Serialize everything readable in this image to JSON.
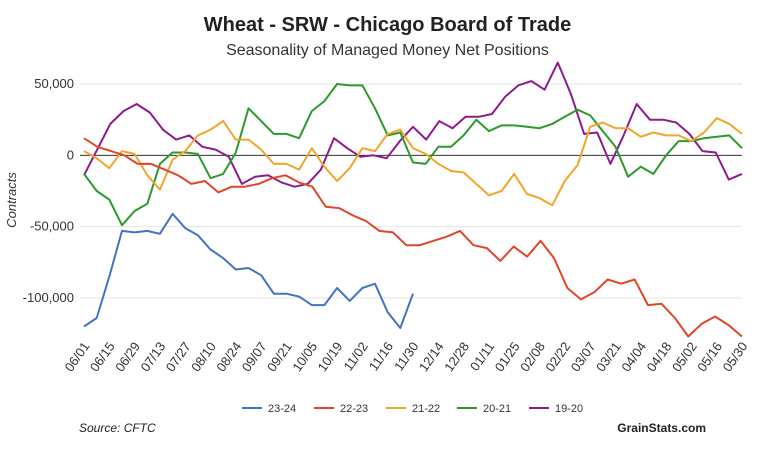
{
  "chart_data": {
    "type": "line",
    "title": "Wheat - SRW - Chicago Board of Trade",
    "subtitle": "Seasonality of Managed Money Net Positions",
    "ylabel": "Contracts",
    "xlabel": "",
    "ylim": [
      -130000,
      60000
    ],
    "y_ticks": [
      50000,
      0,
      -50000,
      -100000
    ],
    "y_tick_labels": [
      "50,000",
      "0",
      "-50,000",
      "-100,000"
    ],
    "x_tick_labels": [
      "06/01",
      "06/15",
      "06/29",
      "07/13",
      "07/27",
      "08/10",
      "08/24",
      "09/07",
      "09/21",
      "10/05",
      "10/19",
      "11/02",
      "11/16",
      "11/30",
      "12/14",
      "12/28",
      "01/11",
      "01/25",
      "02/08",
      "02/22",
      "03/07",
      "03/21",
      "04/04",
      "04/18",
      "05/02",
      "05/16",
      "05/30"
    ],
    "grid": "horizontal",
    "legend_position": "bottom",
    "series": [
      {
        "name": "23-24",
        "color": "#4472c4",
        "values": [
          -120000,
          -114000,
          -85000,
          -53000,
          -54000,
          -53000,
          -55000,
          -41000,
          -51000,
          -56000,
          -66000,
          -72000,
          -80000,
          -79000,
          -84000,
          -97000,
          -97000,
          -99000,
          -105000,
          -105000,
          -93000,
          -102000,
          -93000,
          -90000,
          -110000,
          -121000,
          -97000
        ]
      },
      {
        "name": "22-23",
        "color": "#e0452a",
        "values": [
          12000,
          6000,
          3000,
          0,
          -6000,
          -6000,
          -10000,
          -14000,
          -20000,
          -18000,
          -26000,
          -22000,
          -22000,
          -20000,
          -16000,
          -14000,
          -19000,
          -22000,
          -36000,
          -37000,
          -42000,
          -46000,
          -53000,
          -54000,
          -63000,
          -63000,
          -60000,
          -57000,
          -53000,
          -63000,
          -65000,
          -74000,
          -64000,
          -71000,
          -60000,
          -72000,
          -93000,
          -101000,
          -96000,
          -87000,
          -90000,
          -87000,
          -105000,
          -104000,
          -114000,
          -127000,
          -118000,
          -113000,
          -119000,
          -127000
        ]
      },
      {
        "name": "21-22",
        "color": "#f2a52b",
        "values": [
          3000,
          -2000,
          -9000,
          3000,
          1000,
          -14000,
          -24000,
          -3000,
          3000,
          14000,
          18000,
          24000,
          11000,
          11000,
          4000,
          -6000,
          -6000,
          -10000,
          5000,
          -8000,
          -18000,
          -9000,
          5000,
          3000,
          15000,
          18000,
          5000,
          1000,
          -6000,
          -11000,
          -12000,
          -20000,
          -28000,
          -25000,
          -13000,
          -27000,
          -30000,
          -35000,
          -18000,
          -7000,
          20000,
          23000,
          19000,
          19000,
          13000,
          16000,
          14000,
          14000,
          10000,
          16000,
          26000,
          22000,
          15000
        ]
      },
      {
        "name": "20-21",
        "color": "#2c9a2c",
        "values": [
          -13000,
          -25000,
          -31000,
          -49000,
          -39000,
          -34000,
          -6000,
          2000,
          2000,
          1000,
          -16000,
          -13000,
          2000,
          33000,
          24000,
          15000,
          15000,
          12000,
          31000,
          38000,
          50000,
          49000,
          49000,
          33000,
          14000,
          16000,
          -5000,
          -6000,
          6000,
          6000,
          14000,
          25000,
          17000,
          21000,
          21000,
          20000,
          19000,
          22000,
          27000,
          32000,
          28000,
          17000,
          6000,
          -15000,
          -8000,
          -13000,
          0,
          10000,
          10000,
          12000,
          13000,
          14000,
          5000
        ]
      },
      {
        "name": "19-20",
        "color": "#8e1b8e",
        "values": [
          -14000,
          4000,
          22000,
          31000,
          36000,
          30000,
          18000,
          11000,
          14000,
          6000,
          4000,
          -1000,
          -20000,
          -15000,
          -14000,
          -19000,
          -22000,
          -20000,
          -10000,
          12000,
          5000,
          -1000,
          0,
          -2000,
          10000,
          20000,
          11000,
          24000,
          19000,
          27000,
          27000,
          29000,
          41000,
          49000,
          52000,
          46000,
          65000,
          43000,
          15000,
          16000,
          -6000,
          14000,
          36000,
          25000,
          25000,
          23000,
          15000,
          3000,
          2000,
          -17000,
          -13000
        ]
      }
    ],
    "legend": [
      "23-24",
      "22-23",
      "21-22",
      "20-21",
      "19-20"
    ]
  },
  "footer": {
    "source": "Source: CFTC",
    "brand": "GrainStats.com"
  }
}
